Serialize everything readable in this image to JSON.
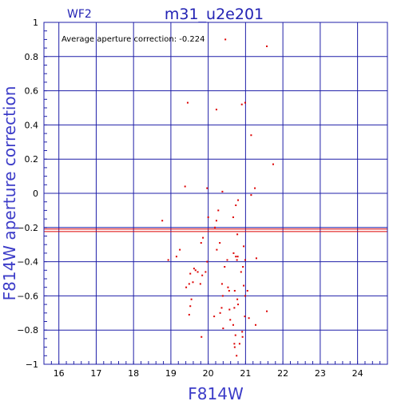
{
  "header": {
    "chip_label": "WF2",
    "title": "m31_u2e201"
  },
  "annotation": "Average  aperture  correction:  -0.224",
  "colors": {
    "grid": "#1f1fa8",
    "points": "#dd0000",
    "text_accent": "#2323b4",
    "axis_title": "#3c3cc8"
  },
  "chart_data": {
    "type": "scatter",
    "xlabel": "F814W",
    "ylabel": "F814W  aperture  correction",
    "xlim": [
      15.6,
      24.8
    ],
    "ylim": [
      -1,
      1
    ],
    "xticks": [
      16,
      17,
      18,
      19,
      20,
      21,
      22,
      23,
      24
    ],
    "yticks": [
      1,
      0.8,
      0.6,
      0.4,
      0.2,
      0,
      -0.2,
      -0.4,
      -0.6,
      -0.8,
      -1
    ],
    "ytick_labels": [
      "1",
      "0.8",
      "0.6",
      "0.4",
      "0.2",
      "0",
      "−0.2",
      "−0.4",
      "−0.6",
      "−0.8",
      "−1"
    ],
    "grid": true,
    "reference_lines": [
      -0.209,
      -0.224
    ],
    "points": [
      [
        21.57,
        0.86
      ],
      [
        20.46,
        0.9
      ],
      [
        19.45,
        0.53
      ],
      [
        20.22,
        0.49
      ],
      [
        20.9,
        0.52
      ],
      [
        20.99,
        0.53
      ],
      [
        21.15,
        0.34
      ],
      [
        21.74,
        0.17
      ],
      [
        19.38,
        0.04
      ],
      [
        19.97,
        0.03
      ],
      [
        20.38,
        0.01
      ],
      [
        21.25,
        0.03
      ],
      [
        21.15,
        -0.01
      ],
      [
        20.8,
        -0.04
      ],
      [
        20.74,
        -0.07
      ],
      [
        20.27,
        -0.1
      ],
      [
        20.67,
        -0.14
      ],
      [
        20.0,
        -0.14
      ],
      [
        20.22,
        -0.16
      ],
      [
        18.77,
        -0.16
      ],
      [
        20.18,
        -0.2
      ],
      [
        20.78,
        -0.24
      ],
      [
        19.86,
        -0.26
      ],
      [
        19.81,
        -0.29
      ],
      [
        20.31,
        -0.29
      ],
      [
        20.23,
        -0.33
      ],
      [
        20.95,
        -0.31
      ],
      [
        19.24,
        -0.33
      ],
      [
        19.15,
        -0.37
      ],
      [
        18.93,
        -0.39
      ],
      [
        19.97,
        -0.4
      ],
      [
        20.68,
        -0.35
      ],
      [
        20.74,
        -0.37
      ],
      [
        20.79,
        -0.37
      ],
      [
        20.51,
        -0.39
      ],
      [
        20.77,
        -0.39
      ],
      [
        21.29,
        -0.38
      ],
      [
        20.99,
        -0.39
      ],
      [
        20.93,
        -0.43
      ],
      [
        20.44,
        -0.43
      ],
      [
        19.62,
        -0.44
      ],
      [
        19.66,
        -0.45
      ],
      [
        19.72,
        -0.46
      ],
      [
        19.52,
        -0.47
      ],
      [
        19.93,
        -0.46
      ],
      [
        19.84,
        -0.48
      ],
      [
        20.88,
        -0.46
      ],
      [
        19.49,
        -0.53
      ],
      [
        19.59,
        -0.52
      ],
      [
        19.41,
        -0.55
      ],
      [
        19.79,
        -0.53
      ],
      [
        20.37,
        -0.53
      ],
      [
        20.95,
        -0.54
      ],
      [
        20.53,
        -0.55
      ],
      [
        20.56,
        -0.57
      ],
      [
        21.05,
        -0.57
      ],
      [
        20.71,
        -0.57
      ],
      [
        20.99,
        -0.6
      ],
      [
        20.39,
        -0.6
      ],
      [
        19.55,
        -0.62
      ],
      [
        20.78,
        -0.62
      ],
      [
        20.8,
        -0.65
      ],
      [
        20.7,
        -0.67
      ],
      [
        19.52,
        -0.66
      ],
      [
        20.36,
        -0.67
      ],
      [
        20.57,
        -0.68
      ],
      [
        21.57,
        -0.69
      ],
      [
        19.49,
        -0.71
      ],
      [
        20.16,
        -0.72
      ],
      [
        20.32,
        -0.7
      ],
      [
        20.98,
        -0.72
      ],
      [
        21.09,
        -0.73
      ],
      [
        20.59,
        -0.74
      ],
      [
        20.4,
        -0.79
      ],
      [
        20.67,
        -0.77
      ],
      [
        21.27,
        -0.77
      ],
      [
        20.91,
        -0.81
      ],
      [
        20.73,
        -0.83
      ],
      [
        19.82,
        -0.84
      ],
      [
        20.92,
        -0.84
      ],
      [
        20.7,
        -0.88
      ],
      [
        20.71,
        -0.9
      ],
      [
        20.84,
        -0.88
      ],
      [
        20.76,
        -0.95
      ]
    ]
  }
}
